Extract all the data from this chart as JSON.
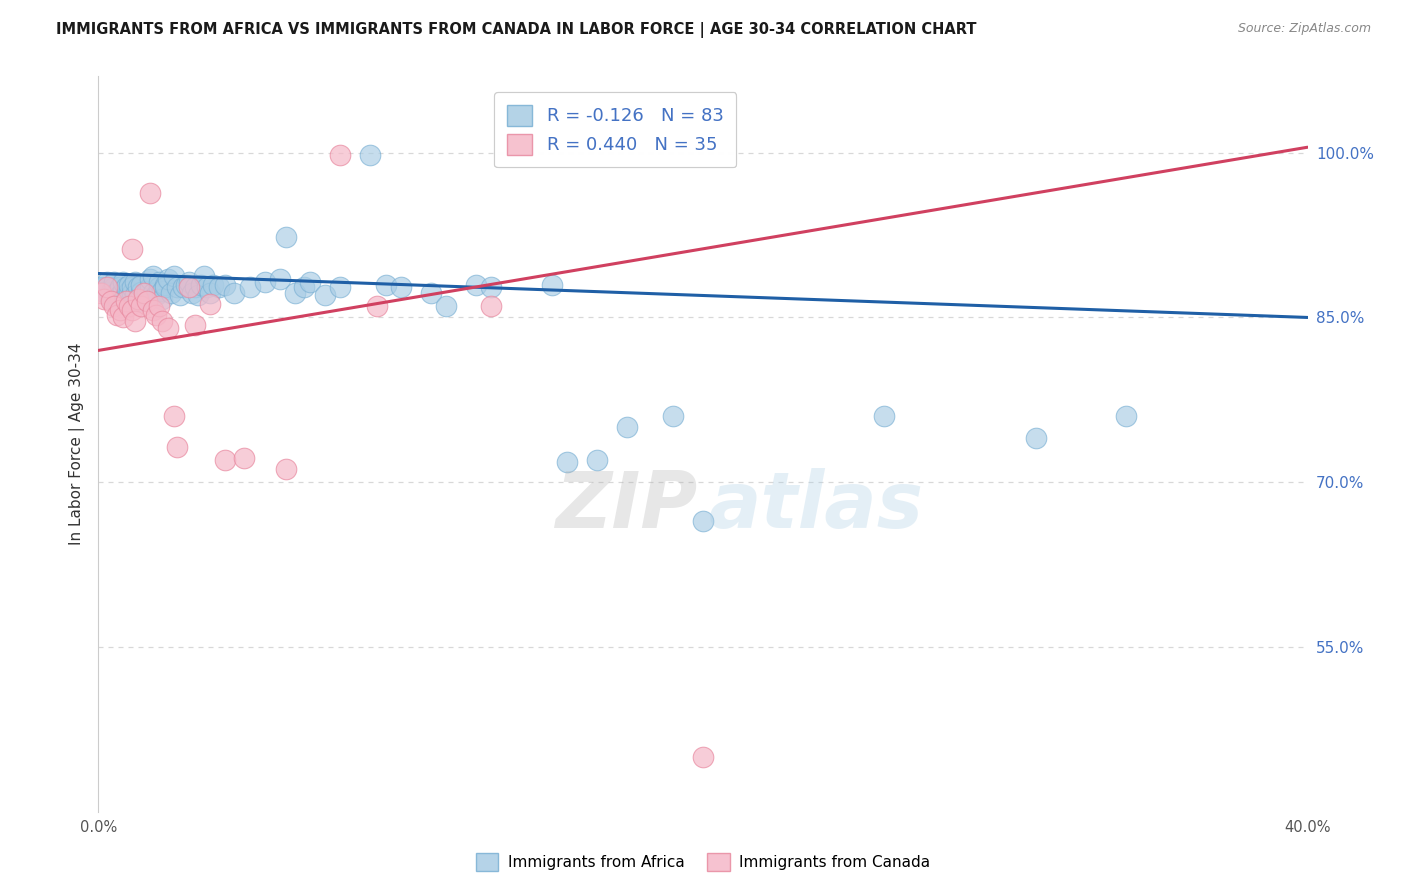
{
  "title": "IMMIGRANTS FROM AFRICA VS IMMIGRANTS FROM CANADA IN LABOR FORCE | AGE 30-34 CORRELATION CHART",
  "source": "Source: ZipAtlas.com",
  "ylabel": "In Labor Force | Age 30-34",
  "xlim": [
    0.0,
    0.4
  ],
  "ylim": [
    0.4,
    1.07
  ],
  "xtick_vals": [
    0.0,
    0.05,
    0.1,
    0.15,
    0.2,
    0.25,
    0.3,
    0.35,
    0.4
  ],
  "xtick_labels": [
    "0.0%",
    "",
    "",
    "",
    "",
    "",
    "",
    "",
    "40.0%"
  ],
  "ytick_vals": [
    0.55,
    0.7,
    0.85,
    1.0
  ],
  "ytick_labels": [
    "55.0%",
    "70.0%",
    "85.0%",
    "100.0%"
  ],
  "africa_R": -0.126,
  "africa_N": 83,
  "canada_R": 0.44,
  "canada_N": 35,
  "africa_color": "#a8cce4",
  "africa_edge_color": "#7ab0d4",
  "canada_color": "#f5b8c8",
  "canada_edge_color": "#e88aa0",
  "africa_line_color": "#1f5fa6",
  "canada_line_color": "#d04060",
  "africa_scatter_x": [
    0.001,
    0.002,
    0.002,
    0.003,
    0.004,
    0.004,
    0.005,
    0.005,
    0.006,
    0.006,
    0.007,
    0.007,
    0.008,
    0.008,
    0.009,
    0.009,
    0.01,
    0.01,
    0.011,
    0.011,
    0.012,
    0.012,
    0.013,
    0.013,
    0.014,
    0.014,
    0.015,
    0.016,
    0.017,
    0.017,
    0.018,
    0.018,
    0.019,
    0.02,
    0.02,
    0.021,
    0.021,
    0.022,
    0.022,
    0.023,
    0.024,
    0.025,
    0.026,
    0.027,
    0.028,
    0.029,
    0.03,
    0.031,
    0.032,
    0.033,
    0.034,
    0.035,
    0.036,
    0.037,
    0.038,
    0.04,
    0.042,
    0.045,
    0.05,
    0.055,
    0.06,
    0.062,
    0.065,
    0.068,
    0.07,
    0.075,
    0.08,
    0.09,
    0.095,
    0.1,
    0.11,
    0.115,
    0.125,
    0.13,
    0.15,
    0.155,
    0.165,
    0.175,
    0.19,
    0.2,
    0.26,
    0.31,
    0.34
  ],
  "africa_scatter_y": [
    0.878,
    0.878,
    0.873,
    0.882,
    0.873,
    0.867,
    0.878,
    0.882,
    0.873,
    0.867,
    0.878,
    0.87,
    0.874,
    0.882,
    0.867,
    0.878,
    0.874,
    0.88,
    0.872,
    0.878,
    0.882,
    0.87,
    0.878,
    0.865,
    0.873,
    0.88,
    0.867,
    0.874,
    0.878,
    0.885,
    0.888,
    0.872,
    0.87,
    0.878,
    0.882,
    0.874,
    0.867,
    0.88,
    0.878,
    0.885,
    0.872,
    0.888,
    0.878,
    0.87,
    0.878,
    0.88,
    0.882,
    0.872,
    0.878,
    0.87,
    0.88,
    0.888,
    0.878,
    0.872,
    0.88,
    0.878,
    0.88,
    0.872,
    0.878,
    0.882,
    0.885,
    0.923,
    0.872,
    0.878,
    0.882,
    0.87,
    0.878,
    0.998,
    0.88,
    0.878,
    0.872,
    0.86,
    0.88,
    0.878,
    0.88,
    0.718,
    0.72,
    0.75,
    0.76,
    0.665,
    0.76,
    0.74,
    0.76
  ],
  "canada_scatter_x": [
    0.001,
    0.002,
    0.003,
    0.004,
    0.005,
    0.006,
    0.007,
    0.008,
    0.009,
    0.01,
    0.011,
    0.011,
    0.012,
    0.013,
    0.014,
    0.015,
    0.016,
    0.017,
    0.018,
    0.019,
    0.02,
    0.021,
    0.023,
    0.025,
    0.026,
    0.03,
    0.032,
    0.037,
    0.042,
    0.048,
    0.062,
    0.08,
    0.092,
    0.13,
    0.2
  ],
  "canada_scatter_y": [
    0.872,
    0.867,
    0.878,
    0.865,
    0.86,
    0.852,
    0.857,
    0.85,
    0.865,
    0.86,
    0.857,
    0.912,
    0.847,
    0.867,
    0.86,
    0.872,
    0.865,
    0.963,
    0.857,
    0.852,
    0.86,
    0.847,
    0.84,
    0.76,
    0.732,
    0.878,
    0.843,
    0.862,
    0.72,
    0.722,
    0.712,
    0.998,
    0.86,
    0.86,
    0.45
  ],
  "africa_trend_x": [
    0.0,
    0.4
  ],
  "africa_trend_y": [
    0.89,
    0.85
  ],
  "canada_trend_x": [
    0.0,
    0.4
  ],
  "canada_trend_y": [
    0.82,
    1.005
  ],
  "watermark_zip": "ZIP",
  "watermark_atlas": "atlas",
  "bg_color": "#ffffff",
  "grid_color": "#d8d8d8",
  "right_axis_color": "#4472c4",
  "title_color": "#1a1a1a",
  "source_color": "#888888",
  "ylabel_color": "#333333"
}
